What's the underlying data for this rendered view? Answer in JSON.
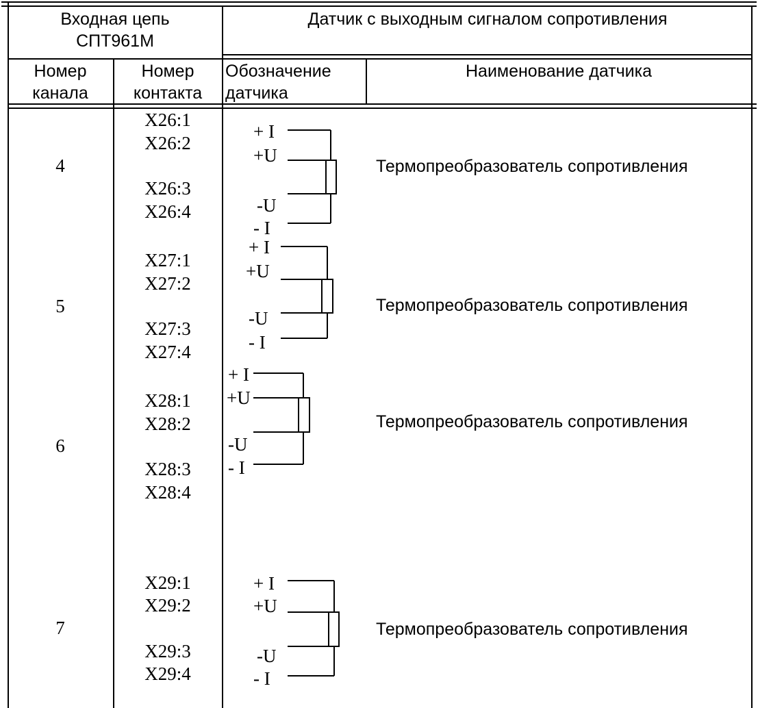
{
  "header": {
    "input_circuit": [
      "Входная цепь",
      "СПТ961М"
    ],
    "sensor_group": "Датчик с выходным сигналом сопротивления",
    "channel_number": [
      "Номер",
      "канала"
    ],
    "contact_number": [
      "Номер",
      "контакта"
    ],
    "sensor_designation": [
      "Обозначение",
      "датчика"
    ],
    "sensor_name": "Наименование датчика"
  },
  "rows": [
    {
      "channel": "4",
      "contacts": [
        "X26:1",
        "X26:2",
        "X26:3",
        "X26:4"
      ],
      "terminals": [
        "+ I",
        "+U",
        "-U",
        "- I"
      ],
      "name": "Термопреобразователь сопротивления"
    },
    {
      "channel": "5",
      "contacts": [
        "X27:1",
        "X27:2",
        "X27:3",
        "X27:4"
      ],
      "terminals": [
        "+ I",
        "+U",
        "-U",
        "- I"
      ],
      "name": "Термопреобразователь сопротивления"
    },
    {
      "channel": "6",
      "contacts": [
        "X28:1",
        "X28:2",
        "X28:3",
        "X28:4"
      ],
      "terminals": [
        "+ I",
        "+U",
        "-U",
        "- I"
      ],
      "name": "Термопреобразователь сопротивления"
    },
    {
      "channel": "7",
      "contacts": [
        "X29:1",
        "X29:2",
        "X29:3",
        "X29:4"
      ],
      "terminals": [
        "+ I",
        "+U",
        "-U",
        "- I"
      ],
      "name": "Термопреобразователь сопротивления"
    }
  ]
}
